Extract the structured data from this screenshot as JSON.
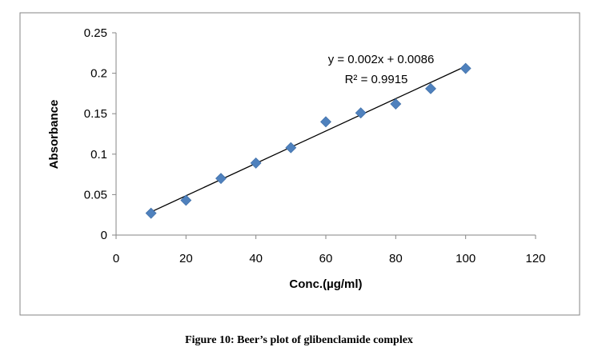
{
  "figure": {
    "caption": "Figure 10: Beer’s plot of glibenclamide complex"
  },
  "chart_data": {
    "type": "scatter",
    "title": "",
    "xlabel": "Conc.(µg/ml)",
    "ylabel": "Absorbance",
    "xlim": [
      0,
      120
    ],
    "ylim": [
      0,
      0.25
    ],
    "xticks": [
      "0",
      "20",
      "40",
      "60",
      "80",
      "100",
      "120"
    ],
    "yticks": [
      "0",
      "0.05",
      "0.1",
      "0.15",
      "0.2",
      "0.25"
    ],
    "grid": false,
    "legend": "none",
    "series": [
      {
        "marker": "diamond",
        "color": "#4f81bd",
        "x": [
          10,
          20,
          30,
          40,
          50,
          60,
          70,
          80,
          90,
          100
        ],
        "y": [
          0.027,
          0.043,
          0.07,
          0.089,
          0.108,
          0.14,
          0.151,
          0.162,
          0.181,
          0.206
        ]
      }
    ],
    "trendline": {
      "type": "linear",
      "slope": 0.002,
      "intercept": 0.0086,
      "x_range": [
        10,
        100
      ],
      "color": "#000000"
    },
    "annotations": [
      "y = 0.002x + 0.0086",
      "R² = 0.9915"
    ]
  }
}
